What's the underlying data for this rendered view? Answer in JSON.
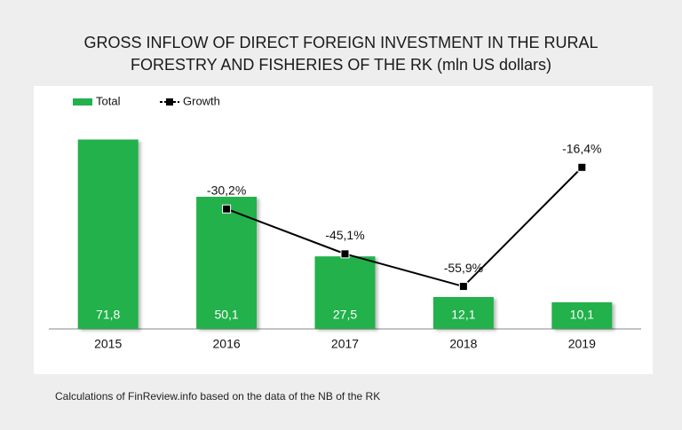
{
  "chart_data": {
    "type": "bar",
    "title": "GROSS INFLOW OF DIRECT FOREIGN INVESTMENT IN THE RURAL FORESTRY AND FISHERIES OF THE RK (mln US dollars)",
    "note": "Calculations of FinReview.info based on the data of the NB of the RK",
    "categories": [
      "2015",
      "2016",
      "2017",
      "2018",
      "2019"
    ],
    "series": [
      {
        "name": "Total",
        "type": "bar",
        "color": "#22b14c",
        "values": [
          71.8,
          50.1,
          27.5,
          12.1,
          10.1
        ],
        "value_labels": [
          "71,8",
          "50,1",
          "27,5",
          "12,1",
          "10,1"
        ]
      },
      {
        "name": "Growth",
        "type": "line",
        "color": "#000000",
        "axis": "y2",
        "values": [
          null,
          -30.2,
          -45.1,
          -55.9,
          -16.4
        ],
        "value_labels": [
          null,
          "-30,2%",
          "-45,1%",
          "-55,9%",
          "-16,4%"
        ]
      }
    ],
    "ylim": [
      0,
      80
    ],
    "y2lim": [
      -70,
      0
    ],
    "legend": "top-left"
  }
}
